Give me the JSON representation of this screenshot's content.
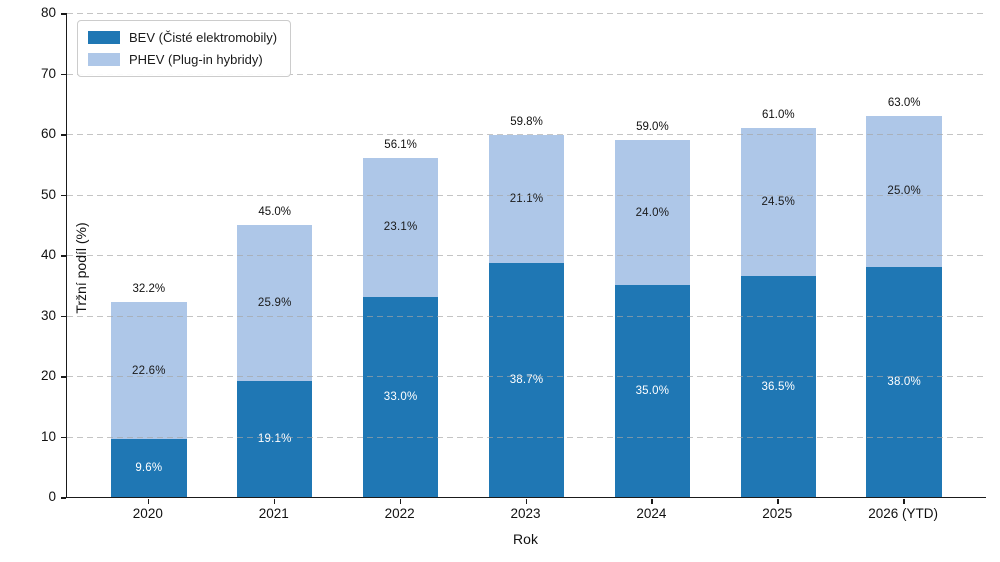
{
  "chart_data": {
    "type": "bar",
    "stacked": true,
    "xlabel": "Rok",
    "ylabel": "Tržní podíl (%)",
    "ylim": [
      0,
      80
    ],
    "yticks": [
      0,
      10,
      20,
      30,
      40,
      50,
      60,
      70,
      80
    ],
    "grid": "horizontal-dashed",
    "grid_color": "#c8c8c8",
    "axis_color": "#1a1a1a",
    "legend_position": "upper-left",
    "categories": [
      "2020",
      "2021",
      "2022",
      "2023",
      "2024",
      "2025",
      "2026 (YTD)"
    ],
    "series": [
      {
        "name": "BEV (Čisté elektromobily)",
        "color": "#1f77b4",
        "label_color": "#ffffff",
        "values": [
          9.6,
          19.1,
          33.0,
          38.7,
          35.0,
          36.5,
          38.0
        ],
        "labels": [
          "9.6%",
          "19.1%",
          "33.0%",
          "38.7%",
          "35.0%",
          "36.5%",
          "38.0%"
        ]
      },
      {
        "name": "PHEV (Plug-in hybridy)",
        "color": "#aec7e8",
        "label_color": "#1a1a1a",
        "values": [
          22.6,
          25.9,
          23.1,
          21.1,
          24.0,
          24.5,
          25.0
        ],
        "labels": [
          "22.6%",
          "25.9%",
          "23.1%",
          "21.1%",
          "24.0%",
          "24.5%",
          "25.0%"
        ]
      }
    ],
    "totals": {
      "values": [
        32.2,
        45.0,
        56.1,
        59.8,
        59.0,
        61.0,
        63.0
      ],
      "labels": [
        "32.2%",
        "45.0%",
        "56.1%",
        "59.8%",
        "59.0%",
        "61.0%",
        "63.0%"
      ]
    }
  }
}
